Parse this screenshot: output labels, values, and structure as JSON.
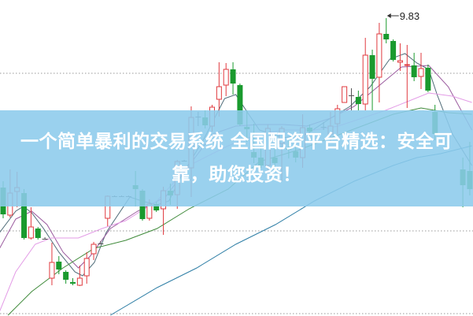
{
  "chart_data": {
    "type": "candlestick",
    "title": "",
    "xlabel": "",
    "ylabel": "",
    "ylim": [
      6.05,
      10.06
    ],
    "grid": {
      "horizontal_dotted": true,
      "levels": [
        9.13,
        7.13,
        6.08
      ]
    },
    "colors": {
      "up": "#e0393e",
      "down": "#1a9a2e",
      "flat": "#555555"
    },
    "annotation": {
      "label": "9.83",
      "value": 9.83,
      "index": 55
    },
    "candles": [
      {
        "i": 0,
        "o": 7.68,
        "h": 7.76,
        "l": 7.29,
        "c": 7.34
      },
      {
        "i": 1,
        "o": 7.33,
        "h": 7.91,
        "l": 7.3,
        "c": 7.61
      },
      {
        "i": 2,
        "o": 7.63,
        "h": 7.88,
        "l": 7.43,
        "c": 7.68
      },
      {
        "i": 3,
        "o": 7.61,
        "h": 7.66,
        "l": 7.02,
        "c": 7.04
      },
      {
        "i": 4,
        "o": 7.04,
        "h": 7.43,
        "l": 7.02,
        "c": 7.18
      },
      {
        "i": 5,
        "o": 7.16,
        "h": 7.18,
        "l": 7.02,
        "c": 7.04
      },
      {
        "i": 6,
        "o": 7.03,
        "h": 7.05,
        "l": 7.02,
        "c": 7.03
      },
      {
        "i": 7,
        "o": 6.53,
        "h": 6.98,
        "l": 6.44,
        "c": 6.73
      },
      {
        "i": 8,
        "o": 6.74,
        "h": 6.81,
        "l": 6.58,
        "c": 6.64
      },
      {
        "i": 9,
        "o": 6.61,
        "h": 6.63,
        "l": 6.46,
        "c": 6.51
      },
      {
        "i": 10,
        "o": 6.48,
        "h": 6.53,
        "l": 6.44,
        "c": 6.46
      },
      {
        "i": 11,
        "o": 6.44,
        "h": 6.69,
        "l": 6.43,
        "c": 6.53
      },
      {
        "i": 12,
        "o": 6.56,
        "h": 6.86,
        "l": 6.46,
        "c": 6.78
      },
      {
        "i": 13,
        "o": 6.84,
        "h": 6.99,
        "l": 6.76,
        "c": 6.96
      },
      {
        "i": 14,
        "o": 6.97,
        "h": 7.0,
        "l": 6.96,
        "c": 6.97
      },
      {
        "i": 15,
        "o": 7.29,
        "h": 7.58,
        "l": 7.19,
        "c": 7.57
      },
      {
        "i": 16,
        "o": 7.57,
        "h": 7.58,
        "l": 7.56,
        "c": 7.57
      },
      {
        "i": 17,
        "o": 7.57,
        "h": 7.58,
        "l": 7.56,
        "c": 7.57
      },
      {
        "i": 18,
        "o": 7.57,
        "h": 7.58,
        "l": 7.56,
        "c": 7.57
      },
      {
        "i": 19,
        "o": 7.71,
        "h": 7.89,
        "l": 7.44,
        "c": 7.66
      },
      {
        "i": 20,
        "o": 7.64,
        "h": 7.66,
        "l": 7.26,
        "c": 7.28
      },
      {
        "i": 21,
        "o": 7.29,
        "h": 7.53,
        "l": 7.26,
        "c": 7.47
      },
      {
        "i": 22,
        "o": 7.47,
        "h": 7.5,
        "l": 7.37,
        "c": 7.39
      },
      {
        "i": 23,
        "o": 7.41,
        "h": 7.69,
        "l": 7.08,
        "c": 7.64
      },
      {
        "i": 24,
        "o": 7.64,
        "h": 7.73,
        "l": 7.46,
        "c": 7.58
      },
      {
        "i": 25,
        "o": 7.59,
        "h": 8.03,
        "l": 7.41,
        "c": 8.01
      },
      {
        "i": 26,
        "o": 8.02,
        "h": 8.03,
        "l": 8.01,
        "c": 8.02
      },
      {
        "i": 27,
        "o": 7.93,
        "h": 8.71,
        "l": 7.56,
        "c": 8.57
      },
      {
        "i": 28,
        "o": 8.58,
        "h": 8.64,
        "l": 8.46,
        "c": 8.58
      },
      {
        "i": 29,
        "o": 8.57,
        "h": 8.66,
        "l": 8.43,
        "c": 8.47
      },
      {
        "i": 30,
        "o": 8.46,
        "h": 8.73,
        "l": 8.39,
        "c": 8.7
      },
      {
        "i": 31,
        "o": 8.8,
        "h": 9.27,
        "l": 8.58,
        "c": 8.96
      },
      {
        "i": 32,
        "o": 8.98,
        "h": 9.26,
        "l": 8.84,
        "c": 9.18
      },
      {
        "i": 33,
        "o": 9.18,
        "h": 9.27,
        "l": 8.86,
        "c": 9.0
      },
      {
        "i": 34,
        "o": 8.98,
        "h": 9.0,
        "l": 8.46,
        "c": 8.48
      },
      {
        "i": 35,
        "o": 8.45,
        "h": 8.66,
        "l": 8.26,
        "c": 8.42
      },
      {
        "i": 36,
        "o": 8.13,
        "h": 8.49,
        "l": 7.99,
        "c": 8.06
      },
      {
        "i": 37,
        "o": 8.06,
        "h": 8.26,
        "l": 7.93,
        "c": 7.96
      },
      {
        "i": 38,
        "o": 7.96,
        "h": 8.48,
        "l": 7.86,
        "c": 8.43
      },
      {
        "i": 39,
        "o": 8.06,
        "h": 8.19,
        "l": 7.89,
        "c": 7.99
      },
      {
        "i": 40,
        "o": 8.24,
        "h": 8.46,
        "l": 7.76,
        "c": 8.43
      },
      {
        "i": 41,
        "o": 8.18,
        "h": 8.3,
        "l": 8.05,
        "c": 8.16
      },
      {
        "i": 42,
        "o": 8.14,
        "h": 8.2,
        "l": 8.0,
        "c": 8.06
      },
      {
        "i": 43,
        "o": 8.06,
        "h": 8.61,
        "l": 7.93,
        "c": 8.44
      },
      {
        "i": 44,
        "o": 8.44,
        "h": 8.48,
        "l": 8.33,
        "c": 8.39
      },
      {
        "i": 46,
        "o": 8.45,
        "h": 8.51,
        "l": 8.41,
        "c": 8.45
      },
      {
        "i": 47,
        "o": 8.36,
        "h": 8.64,
        "l": 8.26,
        "c": 8.46
      },
      {
        "i": 48,
        "o": 8.49,
        "h": 8.73,
        "l": 8.36,
        "c": 8.68
      },
      {
        "i": 49,
        "o": 8.76,
        "h": 8.96,
        "l": 8.76,
        "c": 8.96
      },
      {
        "i": 50,
        "o": 8.85,
        "h": 8.94,
        "l": 8.66,
        "c": 8.85
      },
      {
        "i": 51,
        "o": 8.83,
        "h": 8.91,
        "l": 8.66,
        "c": 8.74
      },
      {
        "i": 52,
        "o": 8.74,
        "h": 9.58,
        "l": 8.66,
        "c": 9.36
      },
      {
        "i": 53,
        "o": 9.36,
        "h": 9.43,
        "l": 8.66,
        "c": 9.06
      },
      {
        "i": 54,
        "o": 9.08,
        "h": 9.77,
        "l": 8.76,
        "c": 9.63
      },
      {
        "i": 55,
        "o": 9.63,
        "h": 9.83,
        "l": 9.51,
        "c": 9.56
      },
      {
        "i": 56,
        "o": 9.54,
        "h": 9.56,
        "l": 9.28,
        "c": 9.3
      },
      {
        "i": 57,
        "o": 9.27,
        "h": 9.51,
        "l": 9.16,
        "c": 9.29
      },
      {
        "i": 58,
        "o": 9.23,
        "h": 9.49,
        "l": 8.69,
        "c": 9.24
      },
      {
        "i": 59,
        "o": 9.23,
        "h": 9.39,
        "l": 9.03,
        "c": 9.08
      },
      {
        "i": 60,
        "o": 9.09,
        "h": 9.39,
        "l": 8.93,
        "c": 9.19
      },
      {
        "i": 61,
        "o": 9.2,
        "h": 9.24,
        "l": 8.89,
        "c": 8.91
      },
      {
        "i": 62,
        "o": 8.64,
        "h": 8.73,
        "l": 8.28,
        "c": 8.36
      },
      {
        "i": 66,
        "o": 7.91,
        "h": 8.06,
        "l": 7.43,
        "c": 7.71
      },
      {
        "i": 67,
        "o": 7.89,
        "h": 8.26,
        "l": 7.58,
        "c": 7.66
      }
    ],
    "moving_averages": [
      {
        "color": "#4f6b78",
        "points": [
          [
            -0.5,
            7.11
          ],
          [
            1.8,
            7.38
          ],
          [
            2.9,
            7.44
          ],
          [
            4.1,
            7.36
          ],
          [
            5.8,
            7.16
          ],
          [
            8.0,
            6.86
          ],
          [
            10.3,
            6.61
          ],
          [
            11.4,
            6.56
          ],
          [
            13.1,
            6.73
          ],
          [
            14.8,
            7.11
          ],
          [
            18.2,
            7.56
          ],
          [
            19.9,
            7.51
          ],
          [
            22.1,
            7.46
          ],
          [
            23.8,
            7.51
          ],
          [
            25.5,
            7.81
          ],
          [
            28.9,
            8.31
          ],
          [
            31.8,
            8.81
          ],
          [
            33.4,
            8.86
          ],
          [
            35.1,
            8.63
          ],
          [
            36.8,
            8.41
          ],
          [
            40.2,
            8.31
          ],
          [
            43.6,
            8.36
          ],
          [
            47.0,
            8.56
          ],
          [
            49.8,
            8.71
          ],
          [
            52.7,
            8.96
          ],
          [
            55.5,
            9.31
          ],
          [
            57.7,
            9.38
          ],
          [
            59.4,
            9.26
          ],
          [
            61.1,
            9.18
          ],
          [
            62.3,
            8.86
          ],
          [
            64.5,
            8.36
          ],
          [
            67.3,
            7.96
          ]
        ]
      },
      {
        "color": "#9a5a9e",
        "points": [
          [
            -0.5,
            6.91
          ],
          [
            1.8,
            7.28
          ],
          [
            4.1,
            7.38
          ],
          [
            6.3,
            7.21
          ],
          [
            8.6,
            6.86
          ],
          [
            10.8,
            6.66
          ],
          [
            12.5,
            6.81
          ],
          [
            15.4,
            7.16
          ],
          [
            19.3,
            7.38
          ],
          [
            23.3,
            7.56
          ],
          [
            26.7,
            7.96
          ],
          [
            30.1,
            8.36
          ],
          [
            33.4,
            8.46
          ],
          [
            36.8,
            8.48
          ],
          [
            40.2,
            8.48
          ],
          [
            43.6,
            8.46
          ],
          [
            47.0,
            8.56
          ],
          [
            50.4,
            8.71
          ],
          [
            53.8,
            8.96
          ],
          [
            57.2,
            9.21
          ],
          [
            59.4,
            9.22
          ],
          [
            61.1,
            9.23
          ],
          [
            63.9,
            8.96
          ],
          [
            67.3,
            8.41
          ]
        ]
      },
      {
        "color": "#e39be6",
        "points": [
          [
            -0.5,
            6.11
          ],
          [
            1.8,
            6.61
          ],
          [
            4.6,
            6.96
          ],
          [
            6.9,
            7.04
          ],
          [
            10.8,
            7.04
          ],
          [
            14.2,
            7.16
          ],
          [
            17.6,
            7.26
          ],
          [
            22.1,
            7.51
          ],
          [
            26.7,
            7.96
          ],
          [
            32.3,
            8.21
          ],
          [
            36.8,
            8.36
          ],
          [
            40.2,
            8.41
          ],
          [
            44.7,
            8.41
          ],
          [
            48.1,
            8.46
          ],
          [
            51.5,
            8.56
          ],
          [
            54.9,
            8.66
          ],
          [
            58.3,
            8.78
          ],
          [
            61.1,
            8.88
          ],
          [
            64.5,
            8.84
          ],
          [
            67.3,
            8.76
          ]
        ]
      },
      {
        "color": "#3f8a3a",
        "points": [
          [
            0.7,
            6.06
          ],
          [
            4.1,
            6.36
          ],
          [
            8.6,
            6.66
          ],
          [
            13.1,
            6.91
          ],
          [
            17.6,
            7.01
          ],
          [
            22.1,
            7.16
          ],
          [
            26.7,
            7.41
          ],
          [
            32.3,
            7.66
          ],
          [
            36.8,
            8.01
          ],
          [
            42.5,
            8.16
          ],
          [
            47.0,
            8.31
          ],
          [
            51.5,
            8.46
          ],
          [
            56.0,
            8.61
          ],
          [
            60.0,
            8.69
          ],
          [
            63.9,
            8.63
          ],
          [
            67.3,
            8.61
          ]
        ]
      },
      {
        "color": "#2f7fa6",
        "points": [
          [
            15.4,
            6.06
          ],
          [
            22.1,
            6.41
          ],
          [
            27.8,
            6.66
          ],
          [
            33.4,
            6.96
          ],
          [
            39.1,
            7.21
          ],
          [
            44.7,
            7.51
          ],
          [
            50.4,
            7.76
          ],
          [
            56.0,
            7.96
          ],
          [
            59.4,
            8.06
          ],
          [
            62.8,
            8.11
          ],
          [
            67.3,
            8.21
          ]
        ]
      }
    ]
  },
  "banner": {
    "title": "一个简单暴利的交易系统 全国配资平台精选：安全可靠，助您投资！"
  }
}
